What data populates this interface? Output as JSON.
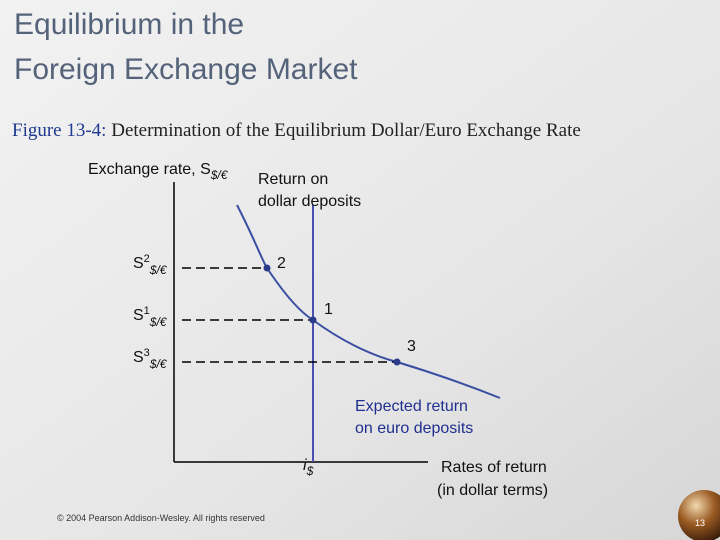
{
  "slide": {
    "title": [
      "Equilibrium in the",
      "Foreign Exchange Market"
    ],
    "caption": {
      "label": "Figure 13-4:",
      "text": "Determination of the Equilibrium Dollar/Euro Exchange Rate"
    },
    "footer": "© 2004 Pearson Addison-Wesley. All rights reserved",
    "page_number": "13"
  },
  "diagram": {
    "y_axis_label": {
      "text": "Exchange rate, S",
      "sub": "$/€"
    },
    "x_axis_label": [
      "Rates of return",
      "(in dollar terms)"
    ],
    "dollar_curve_label": [
      "Return on",
      "dollar deposits"
    ],
    "euro_curve_label": [
      "Expected return",
      "on euro deposits"
    ],
    "interest_label": {
      "text": "i",
      "sub": "$"
    },
    "rate_labels": [
      {
        "base": "S",
        "sup": "2",
        "sub": "$/€"
      },
      {
        "base": "S",
        "sup": "1",
        "sub": "$/€"
      },
      {
        "base": "S",
        "sup": "3",
        "sub": "$/€"
      }
    ],
    "point_labels": [
      "2",
      "1",
      "3"
    ]
  }
}
